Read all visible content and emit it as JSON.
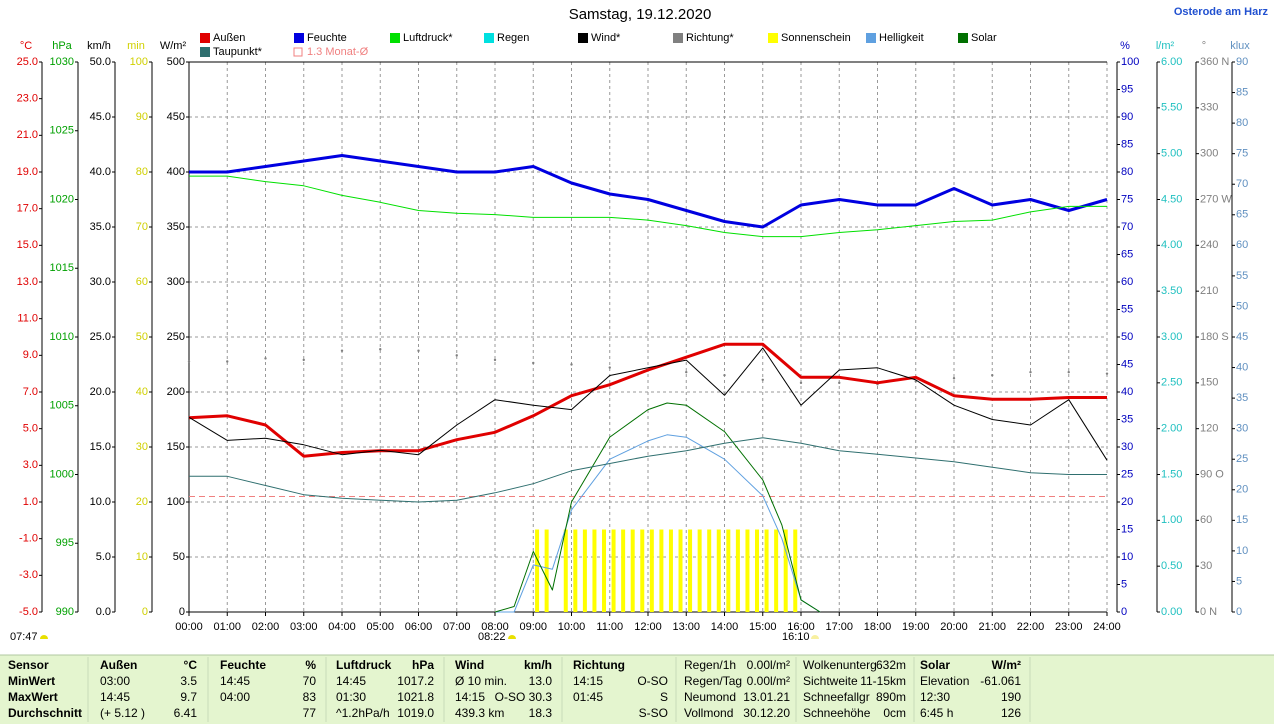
{
  "chart_data": {
    "type": "line",
    "title": "Samstag, 19.12.2020",
    "location": "Osterode am Harz",
    "grid": true,
    "x": [
      0,
      1,
      2,
      3,
      4,
      5,
      6,
      7,
      8,
      9,
      10,
      11,
      12,
      13,
      14,
      15,
      16,
      17,
      18,
      19,
      20,
      21,
      22,
      23,
      24
    ],
    "xlim": [
      0,
      24
    ],
    "xticks": [
      {
        "value": 0,
        "label": "00:00"
      },
      {
        "value": 1,
        "label": "01:00"
      },
      {
        "value": 2,
        "label": "02:00"
      },
      {
        "value": 3,
        "label": "03:00"
      },
      {
        "value": 4,
        "label": "04:00"
      },
      {
        "value": 5,
        "label": "05:00"
      },
      {
        "value": 6,
        "label": "06:00"
      },
      {
        "value": 7,
        "label": "07:00"
      },
      {
        "value": 8,
        "label": "08:00"
      },
      {
        "value": 9,
        "label": "09:00"
      },
      {
        "value": 10,
        "label": "10:00"
      },
      {
        "value": 11,
        "label": "11:00"
      },
      {
        "value": 12,
        "label": "12:00"
      },
      {
        "value": 13,
        "label": "13:00"
      },
      {
        "value": 14,
        "label": "14:00"
      },
      {
        "value": 15,
        "label": "15:00"
      },
      {
        "value": 16,
        "label": "16:00"
      },
      {
        "value": 17,
        "label": "17:00"
      },
      {
        "value": 18,
        "label": "18:00"
      },
      {
        "value": 19,
        "label": "19:00"
      },
      {
        "value": 20,
        "label": "20:00"
      },
      {
        "value": 21,
        "label": "21:00"
      },
      {
        "value": 22,
        "label": "22:00"
      },
      {
        "value": 23,
        "label": "23:00"
      },
      {
        "value": 24,
        "label": "24:00"
      }
    ],
    "axes": [
      {
        "label": "°C",
        "side": "left",
        "color": "#e00000",
        "lim": [
          -5,
          25
        ],
        "ticks": [
          {
            "value": -5,
            "label": "-5.0"
          },
          {
            "value": -3,
            "label": "-3.0"
          },
          {
            "value": -1,
            "label": "-1.0"
          },
          {
            "value": 1,
            "label": "1.0"
          },
          {
            "value": 3,
            "label": "3.0"
          },
          {
            "value": 5,
            "label": "5.0"
          },
          {
            "value": 7,
            "label": "7.0"
          },
          {
            "value": 9,
            "label": "9.0"
          },
          {
            "value": 11,
            "label": "11.0"
          },
          {
            "value": 13,
            "label": "13.0"
          },
          {
            "value": 15,
            "label": "15.0"
          },
          {
            "value": 17,
            "label": "17.0"
          },
          {
            "value": 19,
            "label": "19.0"
          },
          {
            "value": 21,
            "label": "21.0"
          },
          {
            "value": 23,
            "label": "23.0"
          },
          {
            "value": 25,
            "label": "25.0"
          }
        ]
      },
      {
        "label": "hPa",
        "side": "left",
        "color": "#00a000",
        "lim": [
          990,
          1030
        ],
        "ticks": [
          990,
          995,
          1000,
          1005,
          1010,
          1015,
          1020,
          1025,
          1030
        ]
      },
      {
        "label": "km/h",
        "side": "left",
        "color": "#000000",
        "lim": [
          0,
          50
        ],
        "ticks": [
          {
            "value": 0,
            "label": "0.0"
          },
          {
            "value": 5,
            "label": "5.0"
          },
          {
            "value": 10,
            "label": "10.0"
          },
          {
            "value": 15,
            "label": "15.0"
          },
          {
            "value": 20,
            "label": "20.0"
          },
          {
            "value": 25,
            "label": "25.0"
          },
          {
            "value": 30,
            "label": "30.0"
          },
          {
            "value": 35,
            "label": "35.0"
          },
          {
            "value": 40,
            "label": "40.0"
          },
          {
            "value": 45,
            "label": "45.0"
          },
          {
            "value": 50,
            "label": "50.0"
          }
        ]
      },
      {
        "label": "min",
        "side": "left",
        "color": "#d0d000",
        "lim": [
          0,
          100
        ],
        "ticks": [
          0,
          10,
          20,
          30,
          40,
          50,
          60,
          70,
          80,
          90,
          100
        ]
      },
      {
        "label": "W/m²",
        "side": "left",
        "color": "#000000",
        "lim": [
          0,
          500
        ],
        "ticks": [
          0,
          50,
          100,
          150,
          200,
          250,
          300,
          350,
          400,
          450,
          500
        ]
      },
      {
        "label": "%",
        "side": "right",
        "color": "#0000c0",
        "lim": [
          0,
          100
        ],
        "ticks": [
          0,
          5,
          10,
          15,
          20,
          25,
          30,
          35,
          40,
          45,
          50,
          55,
          60,
          65,
          70,
          75,
          80,
          85,
          90,
          95,
          100
        ]
      },
      {
        "label": "l/m²",
        "side": "right",
        "color": "#20c0c0",
        "lim": [
          0,
          6
        ],
        "ticks": [
          {
            "value": 0,
            "label": "0.00"
          },
          {
            "value": 0.5,
            "label": "0.50"
          },
          {
            "value": 1,
            "label": "1.00"
          },
          {
            "value": 1.5,
            "label": "1.50"
          },
          {
            "value": 2,
            "label": "2.00"
          },
          {
            "value": 2.5,
            "label": "2.50"
          },
          {
            "value": 3,
            "label": "3.00"
          },
          {
            "value": 3.5,
            "label": "3.50"
          },
          {
            "value": 4,
            "label": "4.00"
          },
          {
            "value": 4.5,
            "label": "4.50"
          },
          {
            "value": 5,
            "label": "5.00"
          },
          {
            "value": 5.5,
            "label": "5.50"
          },
          {
            "value": 6,
            "label": "6.00"
          }
        ]
      },
      {
        "label": "°",
        "side": "right",
        "color": "#808080",
        "lim": [
          0,
          360
        ],
        "ticks": [
          {
            "value": 0,
            "label": "0 N"
          },
          30,
          60,
          {
            "value": 90,
            "label": "90 O"
          },
          120,
          150,
          {
            "value": 180,
            "label": "180 S"
          },
          210,
          240,
          {
            "value": 270,
            "label": "270 W"
          },
          300,
          330,
          {
            "value": 360,
            "label": "360 N"
          }
        ]
      },
      {
        "label": "klux",
        "side": "right",
        "color": "#6090c0",
        "lim": [
          0,
          90
        ],
        "ticks": [
          0,
          5,
          10,
          15,
          20,
          25,
          30,
          35,
          40,
          45,
          50,
          55,
          60,
          65,
          70,
          75,
          80,
          85,
          90
        ]
      }
    ],
    "series": [
      {
        "name": "Außen",
        "color": "#e00000",
        "axis": "°C",
        "style": "line",
        "width": 3,
        "values": [
          5.6,
          5.7,
          5.2,
          3.5,
          3.7,
          3.8,
          3.8,
          4.4,
          4.8,
          5.7,
          6.8,
          7.4,
          8.2,
          8.9,
          9.6,
          9.6,
          7.8,
          7.8,
          7.5,
          7.8,
          6.8,
          6.6,
          6.6,
          6.7,
          6.7
        ]
      },
      {
        "name": "Feuchte",
        "color": "#0000e0",
        "axis": "%",
        "style": "line",
        "width": 3,
        "values": [
          80,
          80,
          81,
          82,
          83,
          82,
          81,
          80,
          80,
          81,
          78,
          76,
          75,
          73,
          71,
          70,
          74,
          75,
          74,
          74,
          77,
          74,
          75,
          73,
          75
        ]
      },
      {
        "name": "Luftdruck*",
        "color": "#00e000",
        "axis": "hPa",
        "style": "line",
        "width": 1,
        "values": [
          1021.7,
          1021.7,
          1021.3,
          1021.0,
          1020.3,
          1019.8,
          1019.2,
          1019.0,
          1018.9,
          1018.7,
          1018.7,
          1018.7,
          1018.5,
          1018.1,
          1017.6,
          1017.3,
          1017.3,
          1017.6,
          1017.8,
          1018.1,
          1018.4,
          1018.5,
          1019.1,
          1019.5,
          1019.5
        ]
      },
      {
        "name": "Regen",
        "color": "#00e0e0"
      },
      {
        "name": "Wind*",
        "color": "#000000",
        "axis": "km/h",
        "style": "line",
        "width": 1,
        "values": [
          17.7,
          15.6,
          15.8,
          15.2,
          14.3,
          14.7,
          14.3,
          17.0,
          19.3,
          18.8,
          18.4,
          21.5,
          22.2,
          22.9,
          19.7,
          24.0,
          18.8,
          22.0,
          22.2,
          21.1,
          18.8,
          17.5,
          17.0,
          19.3,
          13.8
        ]
      },
      {
        "name": "Richtung*",
        "color": "#808080",
        "axis": "°",
        "style": "dots",
        "values": [
          164,
          164,
          166,
          165,
          171,
          172,
          171,
          168,
          165,
          163,
          162,
          160,
          158,
          157,
          155,
          152,
          150,
          150,
          149,
          151,
          153,
          155,
          157,
          157,
          156
        ]
      },
      {
        "name": "Sonnenschein",
        "color": "#ffff00",
        "axis": "min",
        "style": "bars",
        "x": [
          9.1,
          9.35,
          9.85,
          10.1,
          10.35,
          10.6,
          10.85,
          11.1,
          11.35,
          11.6,
          11.85,
          12.1,
          12.35,
          12.6,
          12.85,
          13.1,
          13.35,
          13.6,
          13.85,
          14.1,
          14.35,
          14.6,
          14.85,
          15.1,
          15.35,
          15.6,
          15.85
        ],
        "values": [
          15,
          15,
          15,
          15,
          15,
          15,
          15,
          15,
          15,
          15,
          15,
          15,
          15,
          15,
          15,
          15,
          15,
          15,
          15,
          15,
          15,
          15,
          15,
          15,
          15,
          15,
          15
        ]
      },
      {
        "name": "Helligkeit",
        "color": "#5fa0e0",
        "axis": "klux",
        "style": "line",
        "width": 1,
        "x": [
          8,
          8.5,
          9,
          9.5,
          10,
          11,
          12,
          12.5,
          13,
          14,
          15,
          15.5,
          16,
          16.5
        ],
        "values": [
          0,
          0,
          7.7,
          7,
          16.7,
          25,
          28,
          29,
          28.6,
          25,
          19,
          12,
          2,
          0
        ]
      },
      {
        "name": "Solar",
        "color": "#007000",
        "axis": "W/m²",
        "style": "line",
        "width": 1,
        "x": [
          8,
          8.5,
          9,
          9.5,
          10,
          11,
          12,
          12.5,
          13,
          14,
          15,
          15.5,
          16,
          16.5
        ],
        "values": [
          0,
          5,
          55,
          20,
          100,
          159,
          184,
          190,
          188,
          164,
          120,
          79,
          11,
          0
        ]
      },
      {
        "name": "Taupunkt*",
        "color": "#2f6f6f",
        "axis": "°C",
        "style": "line",
        "width": 1,
        "values": [
          2.4,
          2.4,
          1.9,
          1.4,
          1.2,
          1.1,
          1.0,
          1.1,
          1.5,
          2.0,
          2.7,
          3.1,
          3.5,
          3.8,
          4.2,
          4.5,
          4.2,
          3.8,
          3.6,
          3.4,
          3.2,
          2.9,
          2.6,
          2.5,
          2.5
        ]
      },
      {
        "name": "1.3 Monat-Ø",
        "color": "#f08080",
        "axis": "°C",
        "style": "hline",
        "value": 1.3
      }
    ],
    "annotations": [
      "07:47",
      "08:22",
      "16:10"
    ]
  },
  "info_table": {
    "rows": [
      [
        "Sensor",
        "Außen",
        "°C",
        "Feuchte",
        "%",
        "Luftdruck",
        "hPa",
        "Wind",
        "km/h",
        "Richtung",
        null,
        "Regen/1h",
        "0.00l/m²",
        "Wolkenunterg",
        "632m",
        "Solar",
        "W/m²"
      ],
      [
        "MinWert",
        "03:00",
        "3.5",
        "14:45",
        "70",
        "14:45",
        "1017.2",
        "Ø 10 min.",
        "13.0",
        "14:15",
        "O-SO",
        "Regen/Tag",
        "0.00l/m²",
        "Sichtweite",
        "11-15km",
        "Elevation",
        "-61.061"
      ],
      [
        "MaxWert",
        "14:45",
        "9.7",
        "04:00",
        "83",
        "01:30",
        "1021.8",
        "14:15",
        "O-SO 30.3",
        "01:45",
        "S",
        "Neumond",
        "13.01.21",
        "Schneefallgr",
        "890m",
        "12:30",
        "190"
      ],
      [
        "Durchschnitt",
        "(+ 5.12 )",
        "6.41",
        null,
        "77",
        "^1.2hPa/h",
        "1019.0",
        "439.3 km",
        "18.3",
        null,
        "S-SO",
        "Vollmond",
        "30.12.20",
        "Schneehöhe",
        "0cm",
        "6:45 h",
        "126"
      ]
    ]
  }
}
